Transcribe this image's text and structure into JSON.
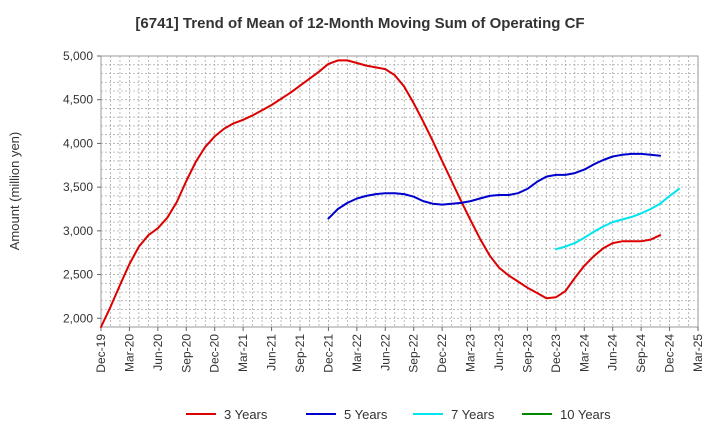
{
  "chart_data": {
    "type": "line",
    "title": "[6741]  Trend of Mean of 12-Month Moving Sum of Operating CF",
    "xlabel": "",
    "ylabel": "Amount (million yen)",
    "ylim": [
      1900,
      5000
    ],
    "grid": true,
    "legend_position": "bottom",
    "x_ticks": [
      "Dec-19",
      "Mar-20",
      "Jun-20",
      "Sep-20",
      "Dec-20",
      "Mar-21",
      "Jun-21",
      "Sep-21",
      "Dec-21",
      "Mar-22",
      "Jun-22",
      "Sep-22",
      "Dec-22",
      "Mar-23",
      "Jun-23",
      "Sep-23",
      "Dec-23",
      "Mar-24",
      "Jun-24",
      "Sep-24",
      "Dec-24",
      "Mar-25"
    ],
    "y_ticks": [
      {
        "value": 2000,
        "label": "2,000"
      },
      {
        "value": 2500,
        "label": "2,500"
      },
      {
        "value": 3000,
        "label": "3,000"
      },
      {
        "value": 3500,
        "label": "3,500"
      },
      {
        "value": 4000,
        "label": "4,000"
      },
      {
        "value": 4500,
        "label": "4,500"
      },
      {
        "value": 5000,
        "label": "5,000"
      }
    ],
    "series": [
      {
        "name": "3 Years",
        "color": "#dd0000",
        "start_index": 0,
        "values": [
          1900,
          2130,
          2380,
          2620,
          2820,
          2950,
          3030,
          3150,
          3330,
          3570,
          3790,
          3960,
          4080,
          4170,
          4230,
          4270,
          4320,
          4380,
          4440,
          4510,
          4580,
          4660,
          4740,
          4820,
          4910,
          4950,
          4950,
          4920,
          4890,
          4870,
          4850,
          4780,
          4650,
          4460,
          4250,
          4030,
          3800,
          3570,
          3340,
          3120,
          2910,
          2720,
          2580,
          2490,
          2420,
          2350,
          2290,
          2230,
          2240,
          2310,
          2460,
          2600,
          2710,
          2800,
          2860,
          2880,
          2880,
          2880,
          2900,
          2950
        ]
      },
      {
        "name": "5 Years",
        "color": "#0000cc",
        "start_index": 24,
        "values": [
          3140,
          3250,
          3320,
          3370,
          3400,
          3420,
          3430,
          3430,
          3420,
          3390,
          3340,
          3310,
          3300,
          3310,
          3320,
          3340,
          3370,
          3400,
          3410,
          3410,
          3430,
          3480,
          3560,
          3620,
          3640,
          3640,
          3660,
          3700,
          3760,
          3810,
          3850,
          3870,
          3880,
          3880,
          3870,
          3860
        ]
      },
      {
        "name": "7 Years",
        "color": "#00e5ee",
        "start_index": 48,
        "values": [
          2790,
          2820,
          2860,
          2920,
          2990,
          3050,
          3100,
          3130,
          3160,
          3200,
          3250,
          3310,
          3400,
          3480
        ]
      },
      {
        "name": "10 Years",
        "color": "#008800",
        "start_index": 0,
        "values": []
      }
    ]
  }
}
